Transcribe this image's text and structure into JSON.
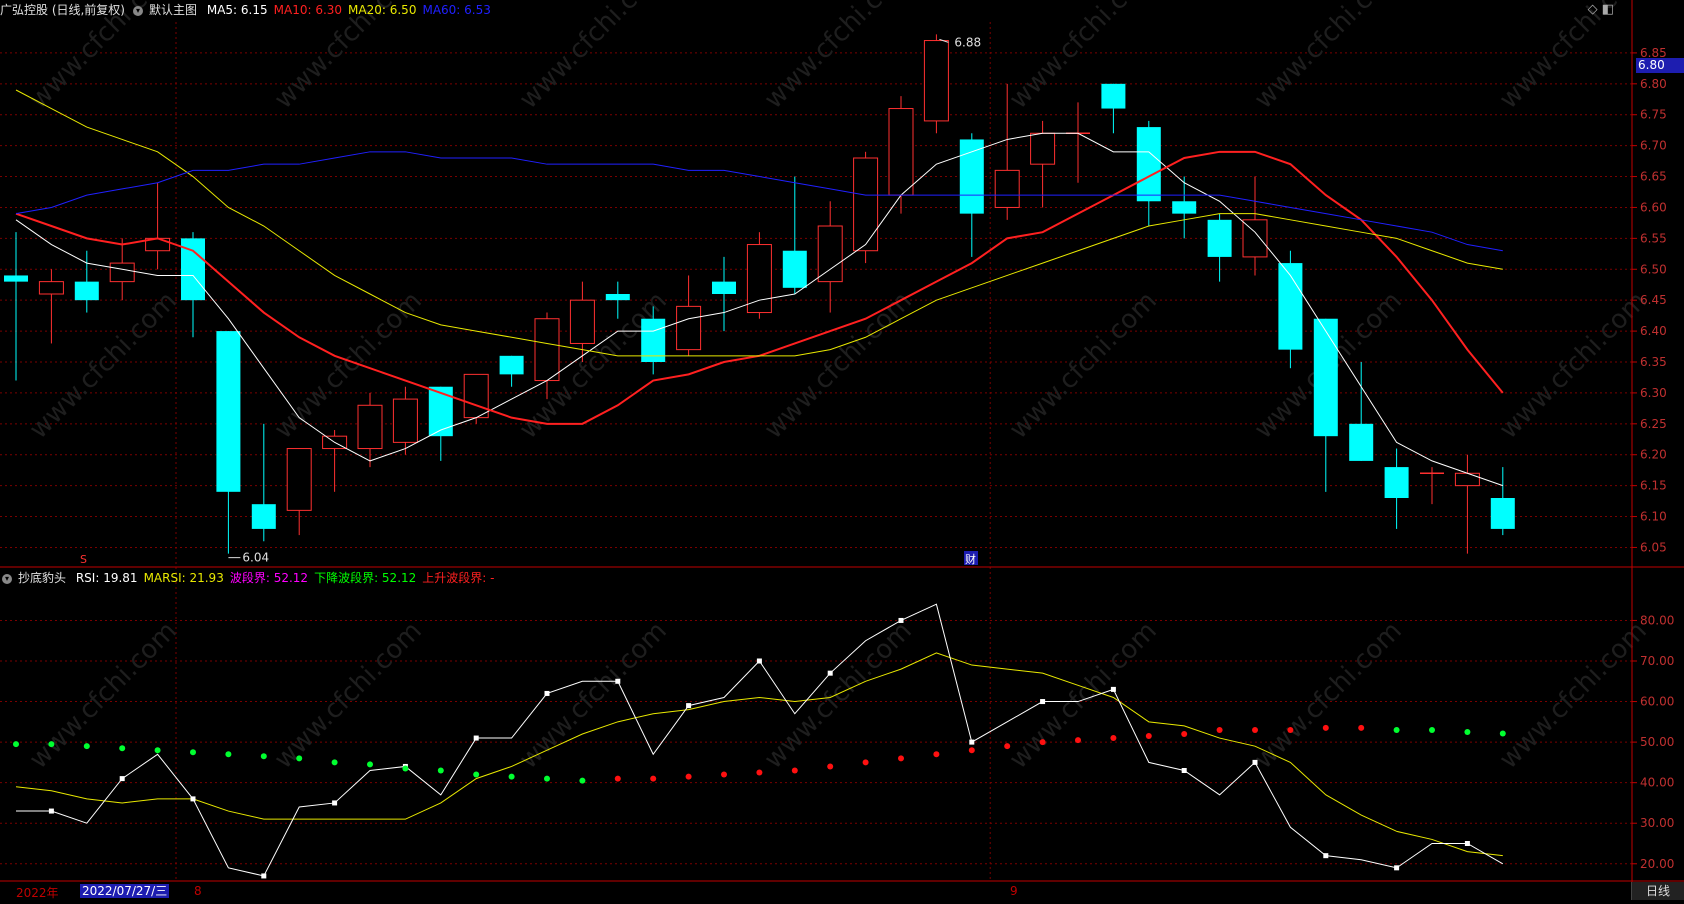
{
  "main_panel": {
    "title": "广弘控股 (日线,前复权)",
    "template": "默认主图",
    "ma_labels": [
      {
        "text": "MA5: 6.15",
        "color": "#ffffff"
      },
      {
        "text": "MA10: 6.30",
        "color": "#ff2020"
      },
      {
        "text": "MA20: 6.50",
        "color": "#e8e800"
      },
      {
        "text": "MA60: 6.53",
        "color": "#2020ff"
      }
    ],
    "price_tag": "6.80",
    "high_label": "6.88",
    "low_label": "6.04",
    "marker_s": "S",
    "marker_cai": "财"
  },
  "sub_panel": {
    "title": "抄底豹头",
    "labels": [
      {
        "text": "RSI: 19.81",
        "color": "#ffffff"
      },
      {
        "text": "MARSI: 21.93",
        "color": "#e8e800"
      },
      {
        "text": "波段界: 52.12",
        "color": "#ff00ff"
      },
      {
        "text": "下降波段界: 52.12",
        "color": "#00ff00"
      },
      {
        "text": "上升波段界: -",
        "color": "#ff2020"
      }
    ]
  },
  "bottom": {
    "year_label": "2022年",
    "cursor_date": "2022/07/27/三",
    "month_labels": [
      "8",
      "9"
    ],
    "period_button": "日线"
  },
  "colors": {
    "up": "#ff3030",
    "down": "#00ffff",
    "grid": "#7a0000",
    "axis": "#c00000",
    "ma5": "#ffffff",
    "ma10": "#ff2020",
    "ma20": "#e8e800",
    "ma60": "#2020ff"
  },
  "chart_data": [
    {
      "type": "candlestick",
      "y_ticks": [
        6.05,
        6.1,
        6.15,
        6.2,
        6.25,
        6.3,
        6.35,
        6.4,
        6.45,
        6.5,
        6.55,
        6.6,
        6.65,
        6.7,
        6.75,
        6.8,
        6.85
      ],
      "ylim": [
        6.02,
        6.9
      ],
      "grid": true,
      "candles": [
        {
          "o": 6.49,
          "h": 6.56,
          "l": 6.32,
          "c": 6.48
        },
        {
          "o": 6.46,
          "h": 6.5,
          "l": 6.38,
          "c": 6.48
        },
        {
          "o": 6.48,
          "h": 6.53,
          "l": 6.43,
          "c": 6.45
        },
        {
          "o": 6.48,
          "h": 6.55,
          "l": 6.45,
          "c": 6.51
        },
        {
          "o": 6.53,
          "h": 6.64,
          "l": 6.5,
          "c": 6.55
        },
        {
          "o": 6.55,
          "h": 6.56,
          "l": 6.39,
          "c": 6.45
        },
        {
          "o": 6.4,
          "h": 6.4,
          "l": 6.04,
          "c": 6.14
        },
        {
          "o": 6.12,
          "h": 6.25,
          "l": 6.06,
          "c": 6.08
        },
        {
          "o": 6.11,
          "h": 6.21,
          "l": 6.07,
          "c": 6.21
        },
        {
          "o": 6.21,
          "h": 6.24,
          "l": 6.14,
          "c": 6.23
        },
        {
          "o": 6.21,
          "h": 6.3,
          "l": 6.18,
          "c": 6.28
        },
        {
          "o": 6.22,
          "h": 6.31,
          "l": 6.2,
          "c": 6.29
        },
        {
          "o": 6.31,
          "h": 6.31,
          "l": 6.19,
          "c": 6.23
        },
        {
          "o": 6.26,
          "h": 6.33,
          "l": 6.25,
          "c": 6.33
        },
        {
          "o": 6.36,
          "h": 6.36,
          "l": 6.31,
          "c": 6.33
        },
        {
          "o": 6.32,
          "h": 6.43,
          "l": 6.29,
          "c": 6.42
        },
        {
          "o": 6.38,
          "h": 6.48,
          "l": 6.35,
          "c": 6.45
        },
        {
          "o": 6.46,
          "h": 6.48,
          "l": 6.42,
          "c": 6.45
        },
        {
          "o": 6.42,
          "h": 6.44,
          "l": 6.33,
          "c": 6.35
        },
        {
          "o": 6.37,
          "h": 6.49,
          "l": 6.36,
          "c": 6.44
        },
        {
          "o": 6.48,
          "h": 6.52,
          "l": 6.4,
          "c": 6.46
        },
        {
          "o": 6.43,
          "h": 6.56,
          "l": 6.42,
          "c": 6.54
        },
        {
          "o": 6.53,
          "h": 6.65,
          "l": 6.46,
          "c": 6.47
        },
        {
          "o": 6.48,
          "h": 6.61,
          "l": 6.43,
          "c": 6.57
        },
        {
          "o": 6.53,
          "h": 6.69,
          "l": 6.51,
          "c": 6.68
        },
        {
          "o": 6.62,
          "h": 6.78,
          "l": 6.59,
          "c": 6.76
        },
        {
          "o": 6.74,
          "h": 6.88,
          "l": 6.72,
          "c": 6.87
        },
        {
          "o": 6.71,
          "h": 6.72,
          "l": 6.52,
          "c": 6.59
        },
        {
          "o": 6.6,
          "h": 6.8,
          "l": 6.58,
          "c": 6.66
        },
        {
          "o": 6.67,
          "h": 6.74,
          "l": 6.6,
          "c": 6.72
        },
        {
          "o": 6.72,
          "h": 6.77,
          "l": 6.64,
          "c": 6.72
        },
        {
          "o": 6.8,
          "h": 6.8,
          "l": 6.72,
          "c": 6.76
        },
        {
          "o": 6.73,
          "h": 6.74,
          "l": 6.57,
          "c": 6.61
        },
        {
          "o": 6.61,
          "h": 6.65,
          "l": 6.55,
          "c": 6.59
        },
        {
          "o": 6.58,
          "h": 6.59,
          "l": 6.48,
          "c": 6.52
        },
        {
          "o": 6.52,
          "h": 6.65,
          "l": 6.49,
          "c": 6.58
        },
        {
          "o": 6.51,
          "h": 6.53,
          "l": 6.34,
          "c": 6.37
        },
        {
          "o": 6.42,
          "h": 6.42,
          "l": 6.14,
          "c": 6.23
        },
        {
          "o": 6.25,
          "h": 6.35,
          "l": 6.19,
          "c": 6.19
        },
        {
          "o": 6.18,
          "h": 6.21,
          "l": 6.08,
          "c": 6.13
        },
        {
          "o": 6.17,
          "h": 6.18,
          "l": 6.12,
          "c": 6.17
        },
        {
          "o": 6.15,
          "h": 6.2,
          "l": 6.04,
          "c": 6.17
        },
        {
          "o": 6.13,
          "h": 6.18,
          "l": 6.07,
          "c": 6.08
        }
      ],
      "series": [
        {
          "name": "MA5",
          "values": [
            6.58,
            6.54,
            6.51,
            6.5,
            6.49,
            6.49,
            6.42,
            6.34,
            6.26,
            6.22,
            6.19,
            6.21,
            6.24,
            6.26,
            6.29,
            6.32,
            6.36,
            6.4,
            6.4,
            6.42,
            6.43,
            6.45,
            6.46,
            6.5,
            6.54,
            6.62,
            6.67,
            6.69,
            6.71,
            6.72,
            6.72,
            6.69,
            6.69,
            6.64,
            6.61,
            6.56,
            6.49,
            6.4,
            6.31,
            6.22,
            6.19,
            6.17,
            6.15
          ]
        },
        {
          "name": "MA10",
          "values": [
            6.59,
            6.57,
            6.55,
            6.54,
            6.55,
            6.53,
            6.48,
            6.43,
            6.39,
            6.36,
            6.34,
            6.32,
            6.3,
            6.28,
            6.26,
            6.25,
            6.25,
            6.28,
            6.32,
            6.33,
            6.35,
            6.36,
            6.38,
            6.4,
            6.42,
            6.45,
            6.48,
            6.51,
            6.55,
            6.56,
            6.59,
            6.62,
            6.65,
            6.68,
            6.69,
            6.69,
            6.67,
            6.62,
            6.58,
            6.52,
            6.45,
            6.37,
            6.3
          ]
        },
        {
          "name": "MA20",
          "values": [
            6.79,
            6.76,
            6.73,
            6.71,
            6.69,
            6.65,
            6.6,
            6.57,
            6.53,
            6.49,
            6.46,
            6.43,
            6.41,
            6.4,
            6.39,
            6.38,
            6.37,
            6.36,
            6.36,
            6.36,
            6.36,
            6.36,
            6.36,
            6.37,
            6.39,
            6.42,
            6.45,
            6.47,
            6.49,
            6.51,
            6.53,
            6.55,
            6.57,
            6.58,
            6.59,
            6.59,
            6.58,
            6.57,
            6.56,
            6.55,
            6.53,
            6.51,
            6.5
          ]
        },
        {
          "name": "MA60",
          "values": [
            6.59,
            6.6,
            6.62,
            6.63,
            6.64,
            6.66,
            6.66,
            6.67,
            6.67,
            6.68,
            6.69,
            6.69,
            6.68,
            6.68,
            6.68,
            6.67,
            6.67,
            6.67,
            6.67,
            6.66,
            6.66,
            6.65,
            6.64,
            6.63,
            6.62,
            6.62,
            6.62,
            6.62,
            6.62,
            6.62,
            6.62,
            6.62,
            6.62,
            6.62,
            6.62,
            6.61,
            6.6,
            6.59,
            6.58,
            6.57,
            6.56,
            6.54,
            6.53
          ]
        }
      ]
    },
    {
      "type": "line",
      "y_ticks": [
        20,
        30,
        40,
        50,
        60,
        70,
        80
      ],
      "ylim": [
        16,
        88
      ],
      "grid": true,
      "series": [
        {
          "name": "RSI",
          "values": [
            33,
            33,
            30,
            41,
            47,
            36,
            19,
            17,
            34,
            35,
            43,
            44,
            37,
            51,
            51,
            62,
            65,
            65,
            47,
            59,
            61,
            70,
            57,
            67,
            75,
            80,
            84,
            50,
            55,
            60,
            60,
            63,
            45,
            43,
            37,
            45,
            29,
            22,
            21,
            19,
            25,
            25,
            20
          ]
        },
        {
          "name": "MARSI",
          "values": [
            39,
            38,
            36,
            35,
            36,
            36,
            33,
            31,
            31,
            31,
            31,
            31,
            35,
            41,
            44,
            48,
            52,
            55,
            57,
            58,
            60,
            61,
            60,
            61,
            65,
            68,
            72,
            69,
            68,
            67,
            64,
            61,
            55,
            54,
            51,
            49,
            45,
            37,
            32,
            28,
            26,
            23,
            22
          ]
        },
        {
          "name": "下降波段界",
          "values": [
            49.5,
            49.5,
            49.0,
            48.5,
            48.0,
            47.5,
            47.0,
            46.5,
            46.0,
            45.0,
            44.5,
            43.5,
            43.0,
            42.0,
            41.5,
            41.0,
            40.5,
            null,
            null,
            null,
            null,
            null,
            null,
            null,
            null,
            null,
            null,
            null,
            null,
            null,
            null,
            null,
            null,
            null,
            null,
            null,
            null,
            null,
            null,
            53,
            53,
            52.5,
            52.12
          ]
        },
        {
          "name": "上升波段界",
          "values": [
            null,
            null,
            null,
            null,
            null,
            null,
            null,
            null,
            null,
            null,
            null,
            null,
            null,
            null,
            null,
            null,
            null,
            41,
            41,
            41.5,
            42,
            42.5,
            43,
            44,
            45,
            46,
            47,
            48,
            49,
            50,
            50.5,
            51,
            51.5,
            52,
            53,
            53,
            53,
            53.5,
            53.5,
            null,
            null,
            null,
            null
          ]
        }
      ]
    }
  ]
}
